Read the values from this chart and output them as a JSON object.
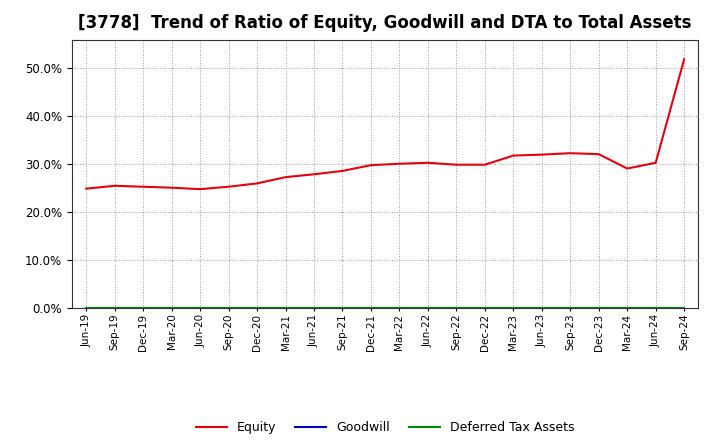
{
  "title": "[3778]  Trend of Ratio of Equity, Goodwill and DTA to Total Assets",
  "x_labels": [
    "Jun-19",
    "Sep-19",
    "Dec-19",
    "Mar-20",
    "Jun-20",
    "Sep-20",
    "Dec-20",
    "Mar-21",
    "Jun-21",
    "Sep-21",
    "Dec-21",
    "Mar-22",
    "Jun-22",
    "Sep-22",
    "Dec-22",
    "Mar-23",
    "Jun-23",
    "Sep-23",
    "Dec-23",
    "Mar-24",
    "Jun-24",
    "Sep-24"
  ],
  "equity": [
    0.249,
    0.255,
    0.253,
    0.251,
    0.248,
    0.253,
    0.26,
    0.273,
    0.279,
    0.286,
    0.298,
    0.301,
    0.303,
    0.299,
    0.299,
    0.318,
    0.32,
    0.323,
    0.321,
    0.291,
    0.303,
    0.519
  ],
  "goodwill": [
    0.0,
    0.0,
    0.0,
    0.0,
    0.0,
    0.0,
    0.0,
    0.0,
    0.0,
    0.0,
    0.0,
    0.0,
    0.0,
    0.0,
    0.0,
    0.0,
    0.0,
    0.0,
    0.0,
    0.0,
    0.0,
    0.0
  ],
  "dta": [
    0.0,
    0.0,
    0.0,
    0.0,
    0.0,
    0.0,
    0.0,
    0.0,
    0.0,
    0.0,
    0.0,
    0.0,
    0.0,
    0.0,
    0.0,
    0.0,
    0.0,
    0.0,
    0.0,
    0.0,
    0.0,
    0.0
  ],
  "equity_color": "#e8000d",
  "goodwill_color": "#0000cc",
  "dta_color": "#008800",
  "ylim": [
    0.0,
    0.56
  ],
  "yticks": [
    0.0,
    0.1,
    0.2,
    0.3,
    0.4,
    0.5
  ],
  "background_color": "#ffffff",
  "plot_bg_color": "#ffffff",
  "grid_color": "#999999",
  "title_fontsize": 12,
  "legend_labels": [
    "Equity",
    "Goodwill",
    "Deferred Tax Assets"
  ]
}
